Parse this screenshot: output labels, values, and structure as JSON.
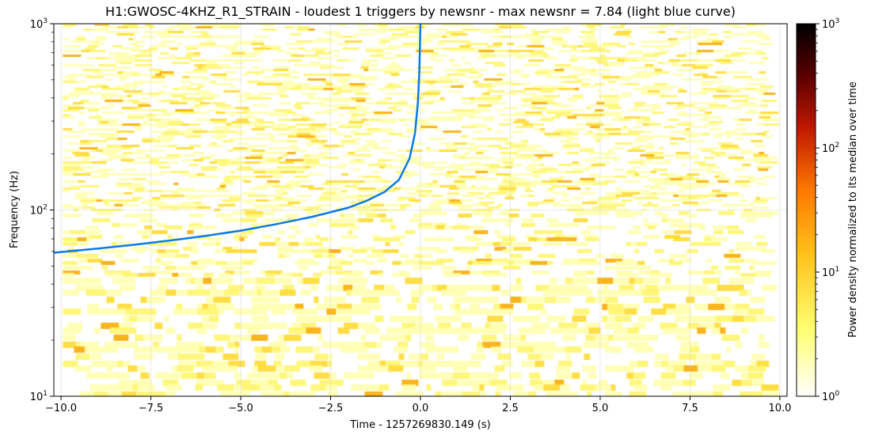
{
  "chart_data": {
    "type": "heatmap",
    "title": "H1:GWOSC-4KHZ_R1_STRAIN - loudest 1 triggers by newsnr - max newsnr = 7.84 (light blue curve)",
    "xlabel": "Time - 1257269830.149 (s)",
    "ylabel": "Frequency (Hz)",
    "colorbar_label": "Power density normalized to its median over time",
    "xlim": [
      -10.2,
      10.2
    ],
    "ylim": [
      10,
      1000
    ],
    "yscale": "log",
    "colorbar_range": [
      1,
      1000
    ],
    "colorbar_scale": "log",
    "colormap": "afmhot_r",
    "data_extent_x": [
      -9.95,
      9.55
    ],
    "grid": true,
    "x_ticks": [
      -10.0,
      -7.5,
      -5.0,
      -2.5,
      0.0,
      2.5,
      5.0,
      7.5,
      10.0
    ],
    "x_tick_labels": [
      "−10.0",
      "−7.5",
      "−5.0",
      "−2.5",
      "0.0",
      "2.5",
      "5.0",
      "7.5",
      "10.0"
    ],
    "y_ticks": [
      10,
      100,
      1000
    ],
    "y_tick_labels": [
      {
        "base": "10",
        "exp": "1"
      },
      {
        "base": "10",
        "exp": "2"
      },
      {
        "base": "10",
        "exp": "3"
      }
    ],
    "colorbar_ticks": [
      1,
      10,
      100,
      1000
    ],
    "colorbar_tick_labels": [
      {
        "base": "10",
        "exp": "0"
      },
      {
        "base": "10",
        "exp": "1"
      },
      {
        "base": "10",
        "exp": "2"
      },
      {
        "base": "10",
        "exp": "3"
      }
    ],
    "trigger_curve": {
      "color": "#0a7ae6",
      "points": [
        [
          -10.2,
          59
        ],
        [
          -9.0,
          62
        ],
        [
          -8.0,
          65
        ],
        [
          -7.0,
          68.5
        ],
        [
          -6.0,
          72.5
        ],
        [
          -5.0,
          77.5
        ],
        [
          -4.0,
          84
        ],
        [
          -3.0,
          92
        ],
        [
          -2.0,
          103
        ],
        [
          -1.5,
          112
        ],
        [
          -1.0,
          125
        ],
        [
          -0.6,
          145
        ],
        [
          -0.3,
          190
        ],
        [
          -0.15,
          260
        ],
        [
          -0.07,
          380
        ],
        [
          -0.03,
          560
        ],
        [
          0.0,
          1000
        ]
      ]
    }
  }
}
